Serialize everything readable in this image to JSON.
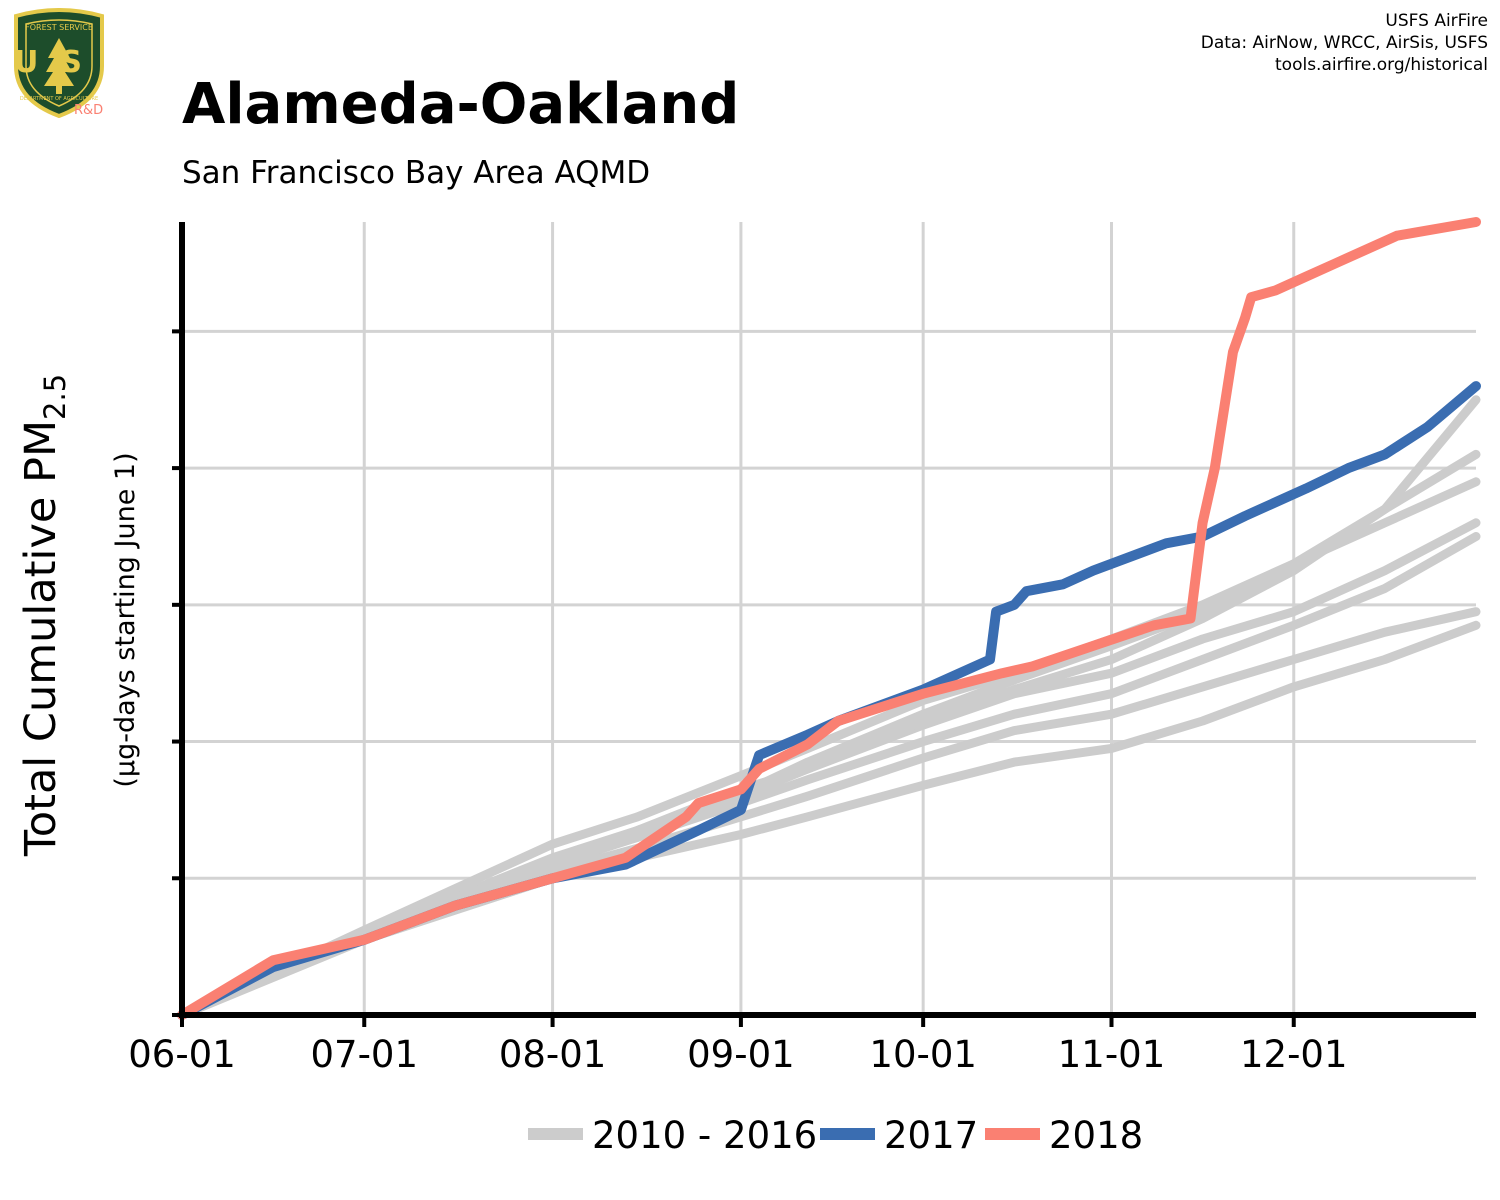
{
  "logo": {
    "top_text": "FOREST SERVICE",
    "initials": "US",
    "bottom_text": "DEPARTMENT OF AGRICULTURE",
    "badge": "R&D"
  },
  "credits": [
    "USFS AirFire",
    "Data: AirNow, WRCC, AirSis, USFS",
    "tools.airfire.org/historical"
  ],
  "title": "Alameda-Oakland",
  "subtitle": "San Francisco Bay Area AQMD",
  "colors": {
    "historical": "#cccccc",
    "y2017": "#3a6db1",
    "y2018": "#fa8072",
    "grid": "#d3d3d3",
    "axis": "#000000"
  },
  "chart_data": {
    "type": "line",
    "title": "Alameda-Oakland",
    "subtitle": "San Francisco Bay Area AQMD",
    "ylabel_main": "Total Cumulative PM",
    "ylabel_sub": "2.5",
    "ylabel_units": "(µg-days starting June 1)",
    "x_tick_labels": [
      "06-01",
      "07-01",
      "08-01",
      "09-01",
      "10-01",
      "11-01",
      "12-01"
    ],
    "x_tick_days": [
      0,
      30,
      61,
      92,
      122,
      153,
      183
    ],
    "xlim": [
      0,
      213
    ],
    "ylim": [
      0,
      5.8
    ],
    "y_ticks": [
      0,
      1,
      2,
      3,
      4,
      5
    ],
    "y_tick_labels_shown": false,
    "grid": true,
    "legend_position": "bottom",
    "legend": [
      "2010 - 2016",
      "2017",
      "2018"
    ],
    "series": [
      {
        "name": "2010 - 2016",
        "group": "historical",
        "x": [
          0,
          30,
          61,
          75,
          92,
          103,
          122,
          137,
          153,
          168,
          183,
          198,
          213
        ],
        "y": [
          0,
          0.6,
          1.15,
          1.35,
          1.65,
          1.8,
          2.12,
          2.35,
          2.5,
          2.75,
          2.95,
          3.25,
          3.6
        ]
      },
      {
        "group": "historical",
        "x": [
          0,
          30,
          61,
          75,
          92,
          103,
          122,
          137,
          153,
          168,
          183,
          198,
          213
        ],
        "y": [
          0,
          0.55,
          1.0,
          1.15,
          1.32,
          1.45,
          1.68,
          1.85,
          1.95,
          2.15,
          2.4,
          2.6,
          2.85
        ]
      },
      {
        "group": "historical",
        "x": [
          0,
          30,
          61,
          75,
          92,
          103,
          122,
          137,
          153,
          168,
          183,
          198,
          213
        ],
        "y": [
          0,
          0.62,
          1.25,
          1.45,
          1.75,
          1.95,
          2.3,
          2.5,
          2.75,
          3.0,
          3.3,
          3.6,
          3.9
        ]
      },
      {
        "group": "historical",
        "x": [
          0,
          30,
          61,
          75,
          92,
          103,
          122,
          137,
          153,
          168,
          183,
          198,
          213
        ],
        "y": [
          0,
          0.58,
          1.1,
          1.3,
          1.55,
          1.72,
          2.0,
          2.2,
          2.35,
          2.6,
          2.85,
          3.12,
          3.5
        ]
      },
      {
        "group": "historical",
        "x": [
          0,
          30,
          61,
          75,
          92,
          103,
          122,
          137,
          153,
          168,
          183,
          198,
          213
        ],
        "y": [
          0,
          0.6,
          1.12,
          1.35,
          1.62,
          1.85,
          2.2,
          2.45,
          2.7,
          2.95,
          3.3,
          3.7,
          4.1
        ]
      },
      {
        "group": "historical",
        "x": [
          0,
          30,
          61,
          75,
          92,
          103,
          122,
          137,
          153,
          168,
          183,
          198,
          213
        ],
        "y": [
          0,
          0.57,
          1.05,
          1.22,
          1.45,
          1.6,
          1.88,
          2.08,
          2.2,
          2.4,
          2.6,
          2.8,
          2.95
        ]
      },
      {
        "group": "historical",
        "x": [
          0,
          30,
          61,
          75,
          92,
          103,
          122,
          137,
          153,
          168,
          183,
          198,
          213
        ],
        "y": [
          0,
          0.59,
          1.12,
          1.3,
          1.6,
          1.8,
          2.15,
          2.38,
          2.6,
          2.9,
          3.25,
          3.7,
          4.5
        ]
      },
      {
        "name": "2017",
        "group": "y2017",
        "x": [
          0,
          15,
          30,
          45,
          61,
          73,
          85,
          92,
          95,
          103,
          108,
          122,
          133,
          134,
          137,
          139,
          145,
          150,
          162,
          168,
          175,
          185,
          192,
          198,
          205,
          213
        ],
        "y": [
          0,
          0.35,
          0.55,
          0.8,
          1.0,
          1.1,
          1.35,
          1.5,
          1.9,
          2.05,
          2.15,
          2.38,
          2.6,
          2.95,
          3.0,
          3.1,
          3.15,
          3.25,
          3.45,
          3.5,
          3.65,
          3.85,
          4.0,
          4.1,
          4.3,
          4.6
        ]
      },
      {
        "name": "2018",
        "group": "y2018",
        "x": [
          0,
          15,
          30,
          45,
          61,
          73,
          83,
          85,
          92,
          95,
          103,
          108,
          122,
          135,
          140,
          150,
          160,
          166,
          168,
          170,
          173,
          175,
          176,
          180,
          185,
          190,
          200,
          213
        ],
        "y": [
          0,
          0.4,
          0.55,
          0.8,
          1.0,
          1.15,
          1.45,
          1.55,
          1.65,
          1.8,
          1.98,
          2.15,
          2.35,
          2.5,
          2.55,
          2.7,
          2.85,
          2.9,
          3.6,
          4.0,
          4.85,
          5.1,
          5.25,
          5.3,
          5.4,
          5.5,
          5.7,
          5.8
        ]
      }
    ]
  }
}
